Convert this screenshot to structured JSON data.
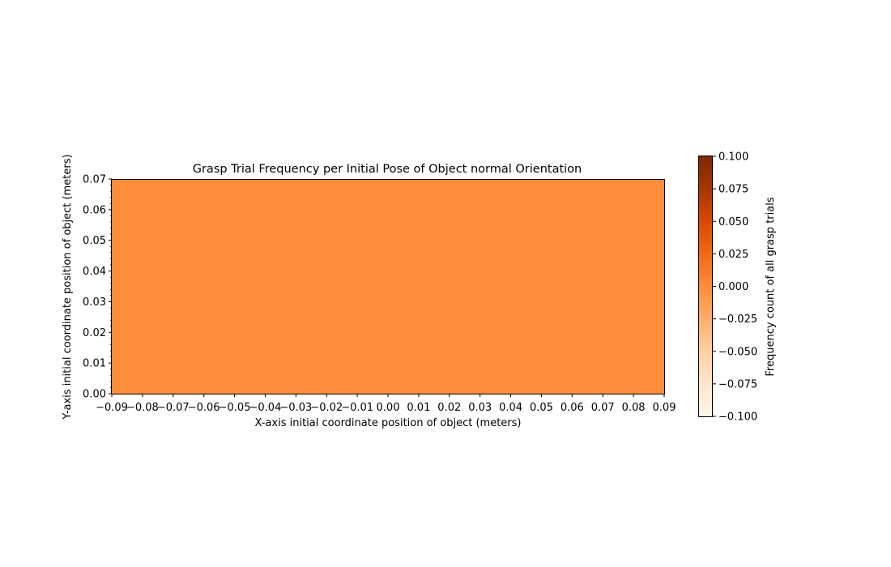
{
  "chart_data": {
    "type": "heatmap",
    "title": "Grasp Trial Frequency per Initial Pose of Object normal Orientation",
    "xlabel": "X-axis initial coordinate position of object (meters)",
    "ylabel": "Y-axis initial coordinate position of object (meters)",
    "xlim": [
      -0.09,
      0.09
    ],
    "ylim": [
      0.0,
      0.07
    ],
    "x_ticks": [
      -0.09,
      -0.08,
      -0.07,
      -0.06,
      -0.05,
      -0.04,
      -0.03,
      -0.02,
      -0.01,
      0.0,
      0.01,
      0.02,
      0.03,
      0.04,
      0.05,
      0.06,
      0.07,
      0.08,
      0.09
    ],
    "x_tick_labels": [
      "−0.09",
      "−0.08",
      "−0.07",
      "−0.06",
      "−0.05",
      "−0.04",
      "−0.03",
      "−0.02",
      "−0.01",
      "0.00",
      "0.01",
      "0.02",
      "0.03",
      "0.04",
      "0.05",
      "0.06",
      "0.07",
      "0.08",
      "0.09"
    ],
    "y_ticks": [
      0.0,
      0.01,
      0.02,
      0.03,
      0.04,
      0.05,
      0.06,
      0.07
    ],
    "y_tick_labels": [
      "0.00",
      "0.01",
      "0.02",
      "0.03",
      "0.04",
      "0.05",
      "0.06",
      "0.07"
    ],
    "cells": [
      {
        "x_range": [
          -0.09,
          0.09
        ],
        "y_range": [
          0.0,
          0.07
        ],
        "value": 0.0
      }
    ],
    "colorbar": {
      "label": "Frequency count of all grasp trials",
      "colormap": "Oranges",
      "range": [
        -0.1,
        0.1
      ],
      "ticks": [
        0.1,
        0.075,
        0.05,
        0.025,
        0.0,
        -0.025,
        -0.05,
        -0.075,
        -0.1
      ],
      "tick_labels": [
        "0.100",
        "0.075",
        "0.050",
        "0.025",
        "0.000",
        "−0.025",
        "−0.050",
        "−0.075",
        "−0.100"
      ],
      "stops": [
        "#fff5eb",
        "#fee6ce",
        "#fdd0a2",
        "#fdae6b",
        "#fd8d3c",
        "#f16913",
        "#d94801",
        "#a63603",
        "#7f2704"
      ]
    },
    "grid": false
  }
}
